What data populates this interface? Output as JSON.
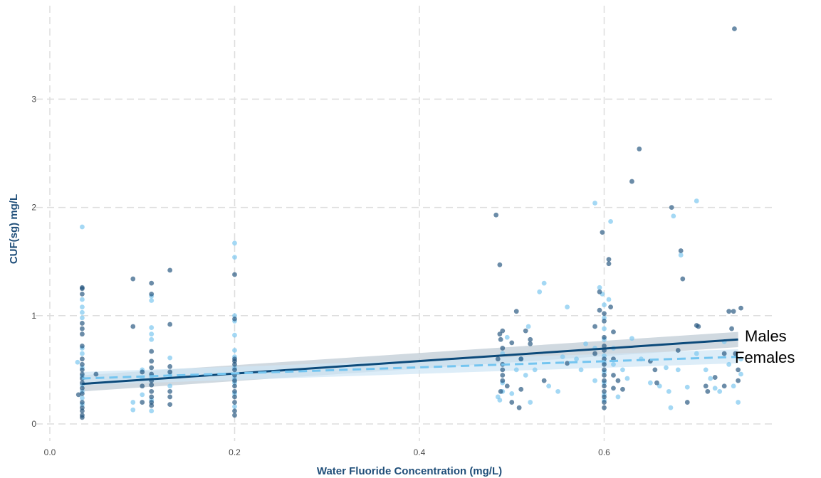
{
  "chart_data": {
    "type": "scatter",
    "title": "",
    "xlabel": "Water Fluoride Concentration (mg/L)",
    "ylabel": "CUF(sg) mg/L",
    "xlim": [
      0.0,
      0.78
    ],
    "ylim": [
      -0.05,
      3.8
    ],
    "x_ticks": [
      0.0,
      0.2,
      0.4,
      0.6
    ],
    "x_tick_labels": [
      "0.0",
      "0.2",
      "0.4",
      "0.6"
    ],
    "y_ticks": [
      0,
      1,
      2,
      3
    ],
    "y_tick_labels": [
      "0",
      "1",
      "2",
      "3"
    ],
    "grid": true,
    "legend": "none",
    "colors": {
      "males": "#1b4f7a",
      "females": "#7ec8f0",
      "males_band": "#b0bfcc",
      "females_band": "#cfe6f5"
    },
    "series": [
      {
        "name": "Males",
        "style": "solid",
        "fit_line": {
          "x": [
            0.035,
            0.745
          ],
          "y": [
            0.37,
            0.78
          ]
        },
        "confidence_band": {
          "x": [
            0.035,
            0.745
          ],
          "lower": [
            0.3,
            0.71
          ],
          "upper": [
            0.45,
            0.85
          ]
        },
        "points": [
          [
            0.031,
            0.27
          ],
          [
            0.035,
            1.26
          ],
          [
            0.035,
            1.25
          ],
          [
            0.035,
            1.2
          ],
          [
            0.035,
            0.93
          ],
          [
            0.035,
            0.88
          ],
          [
            0.035,
            0.83
          ],
          [
            0.035,
            0.72
          ],
          [
            0.035,
            0.6
          ],
          [
            0.035,
            0.55
          ],
          [
            0.035,
            0.5
          ],
          [
            0.035,
            0.46
          ],
          [
            0.035,
            0.42
          ],
          [
            0.035,
            0.38
          ],
          [
            0.035,
            0.33
          ],
          [
            0.035,
            0.28
          ],
          [
            0.035,
            0.2
          ],
          [
            0.035,
            0.15
          ],
          [
            0.035,
            0.12
          ],
          [
            0.035,
            0.08
          ],
          [
            0.035,
            0.06
          ],
          [
            0.05,
            0.46
          ],
          [
            0.09,
            1.34
          ],
          [
            0.09,
            0.9
          ],
          [
            0.1,
            0.48
          ],
          [
            0.1,
            0.35
          ],
          [
            0.1,
            0.2
          ],
          [
            0.11,
            1.3
          ],
          [
            0.11,
            1.2
          ],
          [
            0.11,
            0.67
          ],
          [
            0.11,
            0.58
          ],
          [
            0.11,
            0.52
          ],
          [
            0.11,
            0.46
          ],
          [
            0.11,
            0.4
          ],
          [
            0.11,
            0.36
          ],
          [
            0.11,
            0.3
          ],
          [
            0.11,
            0.25
          ],
          [
            0.11,
            0.2
          ],
          [
            0.11,
            0.17
          ],
          [
            0.13,
            1.42
          ],
          [
            0.13,
            0.92
          ],
          [
            0.13,
            0.53
          ],
          [
            0.13,
            0.48
          ],
          [
            0.13,
            0.3
          ],
          [
            0.13,
            0.25
          ],
          [
            0.13,
            0.18
          ],
          [
            0.2,
            1.38
          ],
          [
            0.2,
            0.97
          ],
          [
            0.2,
            0.6
          ],
          [
            0.2,
            0.58
          ],
          [
            0.2,
            0.55
          ],
          [
            0.2,
            0.5
          ],
          [
            0.2,
            0.45
          ],
          [
            0.2,
            0.4
          ],
          [
            0.2,
            0.35
          ],
          [
            0.2,
            0.3
          ],
          [
            0.2,
            0.25
          ],
          [
            0.2,
            0.2
          ],
          [
            0.2,
            0.12
          ],
          [
            0.2,
            0.08
          ],
          [
            0.483,
            1.93
          ],
          [
            0.487,
            1.47
          ],
          [
            0.485,
            0.6
          ],
          [
            0.487,
            0.83
          ],
          [
            0.49,
            0.86
          ],
          [
            0.488,
            0.78
          ],
          [
            0.49,
            0.7
          ],
          [
            0.49,
            0.55
          ],
          [
            0.49,
            0.5
          ],
          [
            0.49,
            0.45
          ],
          [
            0.49,
            0.4
          ],
          [
            0.488,
            0.3
          ],
          [
            0.5,
            0.75
          ],
          [
            0.505,
            1.04
          ],
          [
            0.508,
            0.15
          ],
          [
            0.51,
            0.32
          ],
          [
            0.515,
            0.86
          ],
          [
            0.52,
            0.78
          ],
          [
            0.52,
            0.74
          ],
          [
            0.535,
            0.4
          ],
          [
            0.56,
            0.56
          ],
          [
            0.5,
            0.2
          ],
          [
            0.495,
            0.35
          ],
          [
            0.51,
            0.6
          ],
          [
            0.59,
            0.9
          ],
          [
            0.59,
            0.65
          ],
          [
            0.595,
            1.22
          ],
          [
            0.595,
            1.05
          ],
          [
            0.598,
            1.77
          ],
          [
            0.6,
            1.02
          ],
          [
            0.6,
            0.95
          ],
          [
            0.6,
            0.8
          ],
          [
            0.6,
            0.72
          ],
          [
            0.6,
            0.68
          ],
          [
            0.6,
            0.6
          ],
          [
            0.6,
            0.55
          ],
          [
            0.6,
            0.5
          ],
          [
            0.6,
            0.45
          ],
          [
            0.6,
            0.4
          ],
          [
            0.6,
            0.35
          ],
          [
            0.6,
            0.3
          ],
          [
            0.6,
            0.25
          ],
          [
            0.6,
            0.2
          ],
          [
            0.6,
            0.15
          ],
          [
            0.605,
            1.52
          ],
          [
            0.605,
            1.48
          ],
          [
            0.607,
            1.08
          ],
          [
            0.61,
            0.85
          ],
          [
            0.61,
            0.6
          ],
          [
            0.61,
            0.45
          ],
          [
            0.61,
            0.33
          ],
          [
            0.615,
            0.4
          ],
          [
            0.62,
            0.32
          ],
          [
            0.63,
            2.24
          ],
          [
            0.638,
            2.54
          ],
          [
            0.65,
            0.58
          ],
          [
            0.655,
            0.5
          ],
          [
            0.657,
            0.38
          ],
          [
            0.673,
            2.0
          ],
          [
            0.68,
            0.68
          ],
          [
            0.683,
            1.6
          ],
          [
            0.685,
            1.34
          ],
          [
            0.69,
            0.2
          ],
          [
            0.7,
            0.91
          ],
          [
            0.702,
            0.9
          ],
          [
            0.71,
            0.35
          ],
          [
            0.712,
            0.3
          ],
          [
            0.72,
            0.43
          ],
          [
            0.73,
            0.35
          ],
          [
            0.735,
            1.04
          ],
          [
            0.738,
            0.88
          ],
          [
            0.74,
            1.04
          ],
          [
            0.742,
            0.65
          ],
          [
            0.745,
            0.5
          ],
          [
            0.748,
            1.07
          ],
          [
            0.745,
            0.4
          ],
          [
            0.73,
            0.65
          ],
          [
            0.741,
            3.65
          ]
        ]
      },
      {
        "name": "Females",
        "style": "dashed",
        "fit_line": {
          "x": [
            0.035,
            0.745
          ],
          "y": [
            0.42,
            0.62
          ]
        },
        "confidence_band": {
          "x": [
            0.035,
            0.745
          ],
          "lower": [
            0.36,
            0.56
          ],
          "upper": [
            0.48,
            0.69
          ]
        },
        "points": [
          [
            0.03,
            0.57
          ],
          [
            0.035,
            1.82
          ],
          [
            0.035,
            1.15
          ],
          [
            0.035,
            1.08
          ],
          [
            0.035,
            1.03
          ],
          [
            0.035,
            0.98
          ],
          [
            0.035,
            0.7
          ],
          [
            0.035,
            0.65
          ],
          [
            0.035,
            0.52
          ],
          [
            0.035,
            0.44
          ],
          [
            0.035,
            0.36
          ],
          [
            0.035,
            0.3
          ],
          [
            0.035,
            0.24
          ],
          [
            0.035,
            0.18
          ],
          [
            0.09,
            0.2
          ],
          [
            0.09,
            0.13
          ],
          [
            0.1,
            0.5
          ],
          [
            0.1,
            0.42
          ],
          [
            0.1,
            0.27
          ],
          [
            0.11,
            1.18
          ],
          [
            0.11,
            1.14
          ],
          [
            0.11,
            0.89
          ],
          [
            0.11,
            0.83
          ],
          [
            0.11,
            0.78
          ],
          [
            0.11,
            0.44
          ],
          [
            0.11,
            0.22
          ],
          [
            0.11,
            0.12
          ],
          [
            0.13,
            0.61
          ],
          [
            0.13,
            0.45
          ],
          [
            0.13,
            0.35
          ],
          [
            0.2,
            1.67
          ],
          [
            0.2,
            1.54
          ],
          [
            0.2,
            1.0
          ],
          [
            0.2,
            0.95
          ],
          [
            0.2,
            0.82
          ],
          [
            0.2,
            0.68
          ],
          [
            0.2,
            0.62
          ],
          [
            0.2,
            0.52
          ],
          [
            0.2,
            0.42
          ],
          [
            0.2,
            0.38
          ],
          [
            0.2,
            0.28
          ],
          [
            0.2,
            0.16
          ],
          [
            0.485,
            0.25
          ],
          [
            0.487,
            0.22
          ],
          [
            0.49,
            0.3
          ],
          [
            0.49,
            0.38
          ],
          [
            0.49,
            0.65
          ],
          [
            0.495,
            0.8
          ],
          [
            0.5,
            0.28
          ],
          [
            0.505,
            0.5
          ],
          [
            0.51,
            0.6
          ],
          [
            0.515,
            0.45
          ],
          [
            0.518,
            0.9
          ],
          [
            0.52,
            0.2
          ],
          [
            0.525,
            0.5
          ],
          [
            0.53,
            1.22
          ],
          [
            0.535,
            1.3
          ],
          [
            0.54,
            0.35
          ],
          [
            0.55,
            0.3
          ],
          [
            0.555,
            0.62
          ],
          [
            0.56,
            1.08
          ],
          [
            0.57,
            0.6
          ],
          [
            0.575,
            0.5
          ],
          [
            0.58,
            0.74
          ],
          [
            0.59,
            2.04
          ],
          [
            0.59,
            0.7
          ],
          [
            0.59,
            0.4
          ],
          [
            0.595,
            1.26
          ],
          [
            0.598,
            1.2
          ],
          [
            0.6,
            1.1
          ],
          [
            0.6,
            0.98
          ],
          [
            0.6,
            0.88
          ],
          [
            0.6,
            0.78
          ],
          [
            0.6,
            0.63
          ],
          [
            0.6,
            0.57
          ],
          [
            0.6,
            0.48
          ],
          [
            0.6,
            0.38
          ],
          [
            0.6,
            0.27
          ],
          [
            0.6,
            0.22
          ],
          [
            0.605,
            1.15
          ],
          [
            0.607,
            1.87
          ],
          [
            0.61,
            0.7
          ],
          [
            0.61,
            0.55
          ],
          [
            0.615,
            0.25
          ],
          [
            0.62,
            0.5
          ],
          [
            0.625,
            0.42
          ],
          [
            0.63,
            0.79
          ],
          [
            0.64,
            0.6
          ],
          [
            0.65,
            0.38
          ],
          [
            0.66,
            0.35
          ],
          [
            0.667,
            0.52
          ],
          [
            0.67,
            0.3
          ],
          [
            0.672,
            0.15
          ],
          [
            0.675,
            1.92
          ],
          [
            0.68,
            0.5
          ],
          [
            0.683,
            1.56
          ],
          [
            0.69,
            0.34
          ],
          [
            0.7,
            2.06
          ],
          [
            0.7,
            0.65
          ],
          [
            0.71,
            0.5
          ],
          [
            0.715,
            0.42
          ],
          [
            0.72,
            0.33
          ],
          [
            0.725,
            0.3
          ],
          [
            0.73,
            0.76
          ],
          [
            0.735,
            0.55
          ],
          [
            0.74,
            0.35
          ],
          [
            0.745,
            0.2
          ],
          [
            0.748,
            0.46
          ],
          [
            0.748,
            0.6
          ]
        ]
      }
    ],
    "annotations": [
      {
        "text": "Males",
        "series": "Males"
      },
      {
        "text": "Females",
        "series": "Females"
      }
    ]
  }
}
